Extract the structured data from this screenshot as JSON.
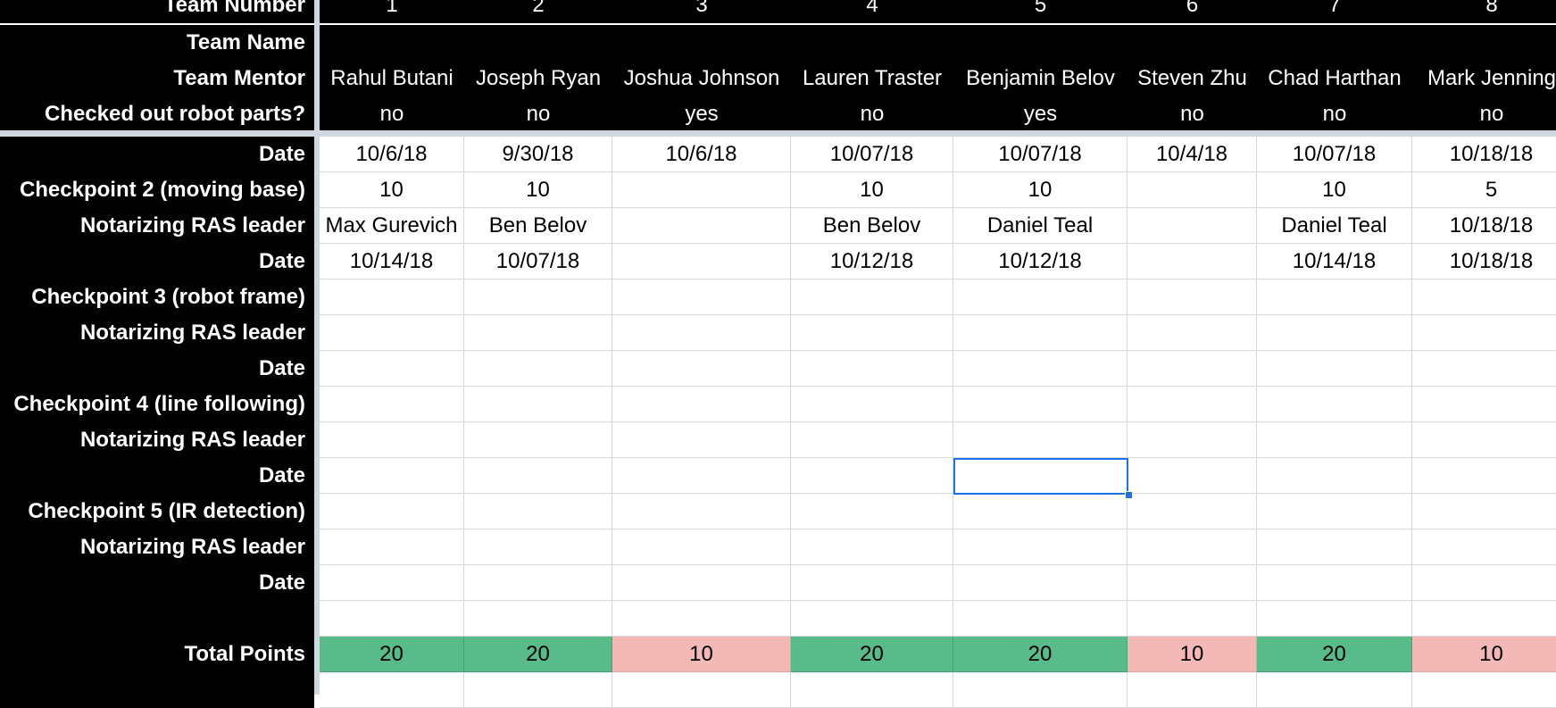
{
  "header_rows": [
    {
      "label": "Team Number",
      "cells": [
        "1",
        "2",
        "3",
        "4",
        "5",
        "6",
        "7",
        "8"
      ]
    },
    {
      "label": "Team Name",
      "cells": [
        "",
        "",
        "",
        "",
        "",
        "",
        "",
        ""
      ]
    },
    {
      "label": "Team Mentor",
      "cells": [
        "Rahul Butani",
        "Joseph Ryan",
        "Joshua Johnson",
        "Lauren Traster",
        "Benjamin Belov",
        "Steven Zhu",
        "Chad Harthan",
        "Mark Jenning"
      ]
    },
    {
      "label": "Checked out robot parts?",
      "cells": [
        "no",
        "no",
        "yes",
        "no",
        "yes",
        "no",
        "no",
        "no"
      ]
    }
  ],
  "body_rows": [
    {
      "label": "Date",
      "cells": [
        "10/6/18",
        "9/30/18",
        "10/6/18",
        "10/07/18",
        "10/07/18",
        "10/4/18",
        "10/07/18",
        "10/18/18"
      ]
    },
    {
      "label": "Checkpoint 2 (moving base)",
      "cells": [
        "10",
        "10",
        "",
        "10",
        "10",
        "",
        "10",
        "5"
      ]
    },
    {
      "label": "Notarizing RAS leader",
      "cells": [
        "Max Gurevich",
        "Ben Belov",
        "",
        "Ben Belov",
        "Daniel Teal",
        "",
        "Daniel Teal",
        "10/18/18"
      ]
    },
    {
      "label": "Date",
      "cells": [
        "10/14/18",
        "10/07/18",
        "",
        "10/12/18",
        "10/12/18",
        "",
        "10/14/18",
        "10/18/18"
      ]
    },
    {
      "label": "Checkpoint 3 (robot frame)",
      "cells": [
        "",
        "",
        "",
        "",
        "",
        "",
        "",
        ""
      ]
    },
    {
      "label": "Notarizing RAS leader",
      "cells": [
        "",
        "",
        "",
        "",
        "",
        "",
        "",
        ""
      ]
    },
    {
      "label": "Date",
      "cells": [
        "",
        "",
        "",
        "",
        "",
        "",
        "",
        ""
      ]
    },
    {
      "label": "Checkpoint 4 (line following)",
      "cells": [
        "",
        "",
        "",
        "",
        "",
        "",
        "",
        ""
      ]
    },
    {
      "label": "Notarizing RAS leader",
      "cells": [
        "",
        "",
        "",
        "",
        "",
        "",
        "",
        ""
      ]
    },
    {
      "label": "Date",
      "cells": [
        "",
        "",
        "",
        "",
        "",
        "",
        "",
        ""
      ]
    },
    {
      "label": "Checkpoint 5 (IR detection)",
      "cells": [
        "",
        "",
        "",
        "",
        "",
        "",
        "",
        ""
      ]
    },
    {
      "label": "Notarizing RAS leader",
      "cells": [
        "",
        "",
        "",
        "",
        "",
        "",
        "",
        ""
      ]
    },
    {
      "label": "Date",
      "cells": [
        "",
        "",
        "",
        "",
        "",
        "",
        "",
        ""
      ]
    },
    {
      "label": "",
      "cells": [
        "",
        "",
        "",
        "",
        "",
        "",
        "",
        ""
      ]
    }
  ],
  "totals": {
    "label": "Total Points",
    "cells": [
      "20",
      "20",
      "10",
      "20",
      "20",
      "10",
      "20",
      "10"
    ],
    "status": [
      "green",
      "green",
      "pink",
      "green",
      "green",
      "pink",
      "green",
      "pink"
    ]
  },
  "colors": {
    "header_bg": "#000000",
    "header_text": "#ffffff",
    "total_high": "#57bb8a",
    "total_low": "#f4b9b6",
    "selection": "#1a73e8"
  },
  "selected_cell": {
    "row": 9,
    "col": 4
  }
}
